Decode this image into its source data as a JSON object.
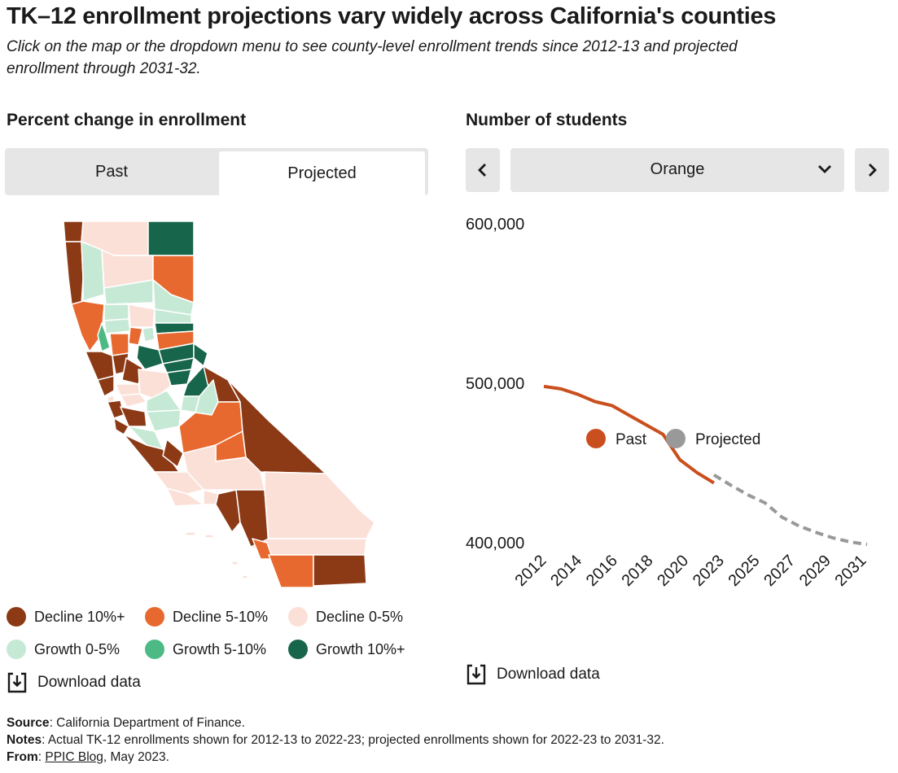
{
  "title": "TK–12 enrollment projections vary widely across California's counties",
  "subtitle": "Click on the map or the dropdown menu to see county-level enrollment trends since 2012-13 and projected enrollment through 2031-32.",
  "left_panel": {
    "heading": "Percent change in enrollment",
    "tabs": [
      {
        "label": "Past"
      },
      {
        "label": "Projected"
      }
    ],
    "active_tab": "Projected",
    "legend": [
      {
        "label": "Decline 10%+",
        "color": "#8c3a16"
      },
      {
        "label": "Decline 5-10%",
        "color": "#e8692f"
      },
      {
        "label": "Decline 0-5%",
        "color": "#fbe0d8"
      },
      {
        "label": "Growth 0-5%",
        "color": "#c6e9d6"
      },
      {
        "label": "Growth 5-10%",
        "color": "#4dba86"
      },
      {
        "label": "Growth 10%+",
        "color": "#17654a"
      }
    ],
    "download_label": "Download data"
  },
  "right_panel": {
    "heading": "Number of students",
    "county_select": {
      "value": "Orange"
    },
    "download_label": "Download data"
  },
  "chart_data": {
    "type": "line",
    "ylim": [
      400000,
      600000
    ],
    "y_ticks": [
      "600,000",
      "500,000",
      "400,000"
    ],
    "y_tick_values": [
      600000,
      500000,
      400000
    ],
    "x_tick_labels": [
      "2012",
      "2014",
      "2016",
      "2018",
      "2020",
      "2023",
      "2025",
      "2027",
      "2029",
      "2031"
    ],
    "series": [
      {
        "name": "Past",
        "color": "#c9501e",
        "style": "solid",
        "x": [
          2012,
          2013,
          2014,
          2015,
          2016,
          2017,
          2018,
          2019,
          2020,
          2021,
          2022
        ],
        "y": [
          498000,
          496500,
          493000,
          488500,
          486000,
          480000,
          474000,
          468000,
          452000,
          444000,
          437500
        ]
      },
      {
        "name": "Projected",
        "color": "#999999",
        "style": "dashed",
        "x": [
          2022,
          2023,
          2024,
          2025,
          2026,
          2027,
          2028,
          2029,
          2030,
          2031
        ],
        "y": [
          442500,
          436000,
          430000,
          425000,
          416000,
          410500,
          406500,
          403000,
          400500,
          399000
        ]
      }
    ],
    "legend": [
      {
        "label": "Past",
        "color": "#c9501e"
      },
      {
        "label": "Projected",
        "color": "#999999"
      }
    ]
  },
  "footer": {
    "source_label": "Source",
    "source_text": ": California Department of Finance.",
    "notes_label": "Notes",
    "notes_text": ": Actual TK-12 enrollments shown for 2012-13 to 2022-23; projected enrollments shown for 2022-23 to 2031-32.",
    "from_label": "From",
    "from_link": "PPIC Blog",
    "from_text": ", May 2023."
  }
}
